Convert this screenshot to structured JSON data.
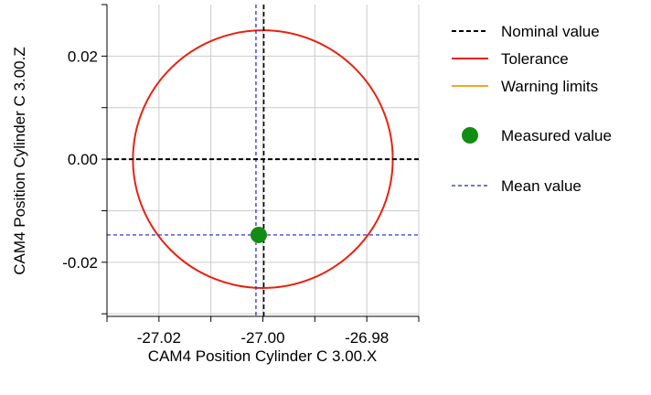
{
  "chart_data": {
    "type": "scatter",
    "xlabel": "CAM4 Position Cylinder C 3.00.X",
    "ylabel": "CAM4 Position Cylinder C 3.00.Z",
    "xlim": [
      -27.03,
      -26.97
    ],
    "ylim": [
      -0.0305,
      0.03
    ],
    "x_ticks": [
      -27.02,
      -27.0,
      -26.98
    ],
    "x_tick_labels": [
      "-27.02",
      "-27.00",
      "-26.98"
    ],
    "y_ticks": [
      -0.02,
      0.0,
      0.02
    ],
    "y_tick_labels": [
      "-0.02",
      "0.00",
      "0.02"
    ],
    "grid": true,
    "nominal": {
      "x": -27.0,
      "y": 0.0
    },
    "tolerance_radius": 0.025,
    "measured": {
      "x": -27.0008,
      "y": -0.0147
    },
    "mean": {
      "x": -27.0008,
      "y": -0.0147
    },
    "legend": {
      "position": "right",
      "items": [
        {
          "key": "nominal",
          "label": "Nominal value",
          "color": "#000000",
          "style": "dashed-line"
        },
        {
          "key": "tolerance",
          "label": "Tolerance",
          "color": "#e8220f",
          "style": "solid-line"
        },
        {
          "key": "warning",
          "label": "Warning limits",
          "color": "#f5a623",
          "style": "solid-line"
        },
        {
          "key": "measured",
          "label": "Measured value",
          "color": "#138c13",
          "style": "marker"
        },
        {
          "key": "mean",
          "label": "Mean value",
          "color": "#1f1fcc",
          "style": "dashed-line"
        }
      ]
    },
    "colors": {
      "nominal": "#000000",
      "tolerance": "#e8220f",
      "warning": "#f5a623",
      "measured": "#138c13",
      "mean": "#1f1fcc",
      "grid": "#cccccc"
    }
  }
}
